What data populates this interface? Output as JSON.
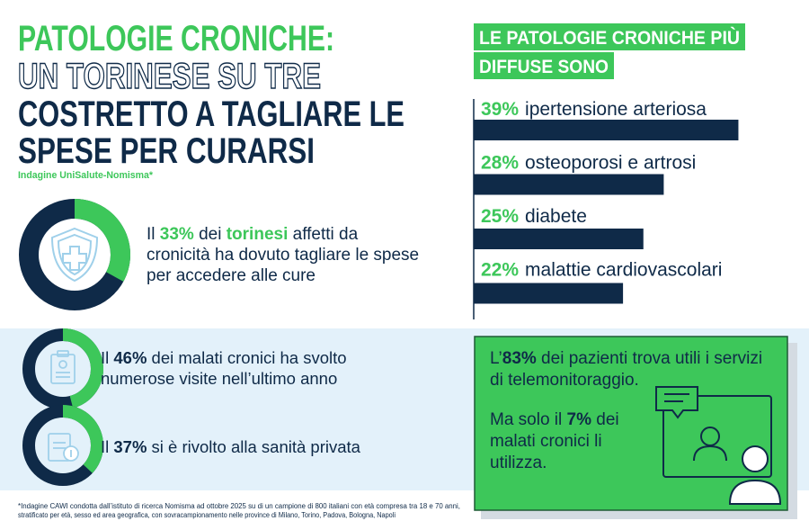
{
  "header": {
    "title": [
      "PATOLOGIE CRONICHE:",
      "UN TORINESE SU TRE",
      "COSTRETTO A TAGLIARE LE",
      "SPESE PER CURARSI"
    ],
    "source": "Indagine UniSalute-Nomisma*"
  },
  "chart_data": {
    "type": "bar",
    "title": [
      "LE PATOLOGIE CRONICHE PIÙ",
      "DIFFUSE SONO"
    ],
    "categories": [
      "ipertensione arteriosa",
      "osteoporosi e artrosi",
      "diabete",
      "malattie cardiovascolari"
    ],
    "values": [
      39,
      28,
      25,
      22
    ],
    "value_labels": [
      "39%",
      "28%",
      "25%",
      "22%"
    ],
    "color": "#0f2a48",
    "label_color": "#3dc75a"
  },
  "donut_colors": {
    "part": "#3dc75a",
    "rest": "#0f2a48"
  },
  "stats": [
    {
      "value": 33,
      "lines": [
        [
          {
            "text": "Il "
          },
          {
            "text": "33%",
            "bold": true,
            "green": true
          },
          {
            "text": " dei "
          },
          {
            "text": "torinesi",
            "bold": true,
            "green": true
          },
          {
            "text": " affetti da"
          }
        ],
        [
          {
            "text": "cronicità ha dovuto tagliare le spese"
          }
        ],
        [
          {
            "text": "per accedere alle cure"
          }
        ]
      ]
    },
    {
      "value": 46,
      "lines": [
        [
          {
            "text": "Il "
          },
          {
            "text": "46%",
            "bold": true
          },
          {
            "text": " dei malati cronici ha svolto"
          }
        ],
        [
          {
            "text": "numerose visite nell’ultimo anno"
          }
        ]
      ]
    },
    {
      "value": 37,
      "lines": [
        [
          {
            "text": "Il "
          },
          {
            "text": "37%",
            "bold": true
          },
          {
            "text": " si è rivolto alla sanità privata"
          }
        ]
      ]
    }
  ],
  "telemonitoring": {
    "lines": [
      [
        {
          "text": "L’"
        },
        {
          "text": "83%",
          "bold": true
        },
        {
          "text": " dei pazienti trova utili i servizi"
        }
      ],
      [
        {
          "text": "di telemonitoraggio."
        }
      ],
      [
        {
          "text": "Ma solo il "
        },
        {
          "text": "7%",
          "bold": true
        },
        {
          "text": " dei"
        }
      ],
      [
        {
          "text": "malati cronici li"
        }
      ],
      [
        {
          "text": "utilizza."
        }
      ]
    ]
  },
  "footnote": [
    "*Indagine CAWI condotta dall’istituto di ricerca Nomisma ad ottobre 2025 su di un campione di 800 italiani con età compresa tra 18 e 70 anni,",
    "stratificato per età, sesso ed area geografica, con sovracampionamento nelle province di Milano, Torino, Padova, Bologna, Napoli"
  ]
}
